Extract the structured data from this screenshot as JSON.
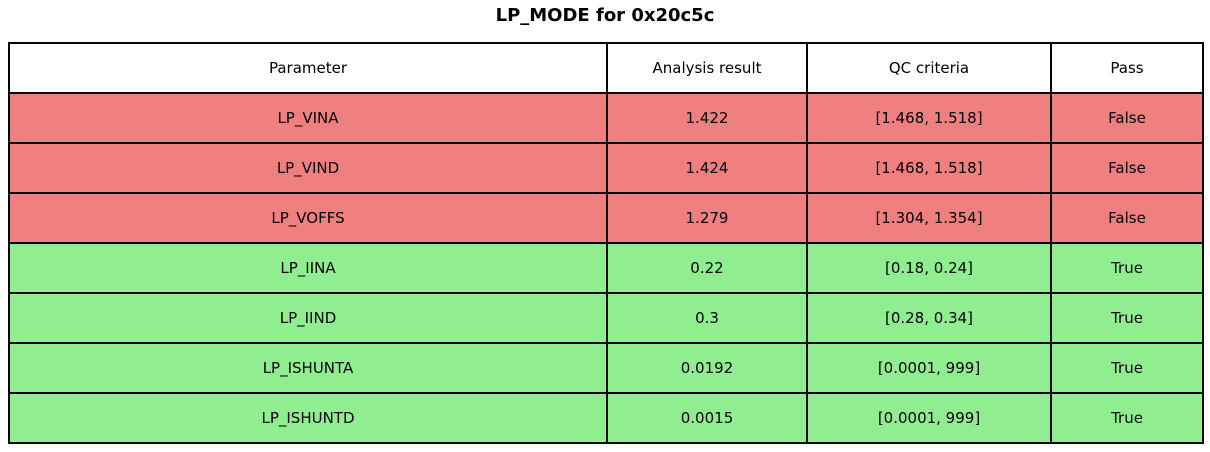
{
  "title": "LP_MODE for 0x20c5c",
  "colors": {
    "fail_row": "#f08080",
    "pass_row": "#90ee90",
    "header_bg": "#ffffff",
    "border": "#000000",
    "text": "#000000"
  },
  "table": {
    "columns": [
      "Parameter",
      "Analysis result",
      "QC criteria",
      "Pass"
    ],
    "rows": [
      {
        "parameter": "LP_VINA",
        "analysis_result": "1.422",
        "qc_criteria": "[1.468, 1.518]",
        "pass": "False",
        "status": "fail"
      },
      {
        "parameter": "LP_VIND",
        "analysis_result": "1.424",
        "qc_criteria": "[1.468, 1.518]",
        "pass": "False",
        "status": "fail"
      },
      {
        "parameter": "LP_VOFFS",
        "analysis_result": "1.279",
        "qc_criteria": "[1.304, 1.354]",
        "pass": "False",
        "status": "fail"
      },
      {
        "parameter": "LP_IINA",
        "analysis_result": "0.22",
        "qc_criteria": "[0.18, 0.24]",
        "pass": "True",
        "status": "pass"
      },
      {
        "parameter": "LP_IIND",
        "analysis_result": "0.3",
        "qc_criteria": "[0.28, 0.34]",
        "pass": "True",
        "status": "pass"
      },
      {
        "parameter": "LP_ISHUNTA",
        "analysis_result": "0.0192",
        "qc_criteria": "[0.0001, 999]",
        "pass": "True",
        "status": "pass"
      },
      {
        "parameter": "LP_ISHUNTD",
        "analysis_result": "0.0015",
        "qc_criteria": "[0.0001, 999]",
        "pass": "True",
        "status": "pass"
      }
    ]
  },
  "chart_data": {
    "type": "table",
    "title": "LP_MODE for 0x20c5c",
    "columns": [
      "Parameter",
      "Analysis result",
      "QC criteria",
      "Pass"
    ],
    "rows": [
      [
        "LP_VINA",
        1.422,
        "[1.468, 1.518]",
        "False"
      ],
      [
        "LP_VIND",
        1.424,
        "[1.468, 1.518]",
        "False"
      ],
      [
        "LP_VOFFS",
        1.279,
        "[1.304, 1.354]",
        "False"
      ],
      [
        "LP_IINA",
        0.22,
        "[0.18, 0.24]",
        "True"
      ],
      [
        "LP_IIND",
        0.3,
        "[0.28, 0.34]",
        "True"
      ],
      [
        "LP_ISHUNTA",
        0.0192,
        "[0.0001, 999]",
        "True"
      ],
      [
        "LP_ISHUNTD",
        0.0015,
        "[0.0001, 999]",
        "True"
      ]
    ],
    "row_colors": [
      "#f08080",
      "#f08080",
      "#f08080",
      "#90ee90",
      "#90ee90",
      "#90ee90",
      "#90ee90"
    ],
    "layout": {
      "header_background": "#ffffff",
      "border_color": "#000000",
      "title_position": "top-center"
    }
  }
}
